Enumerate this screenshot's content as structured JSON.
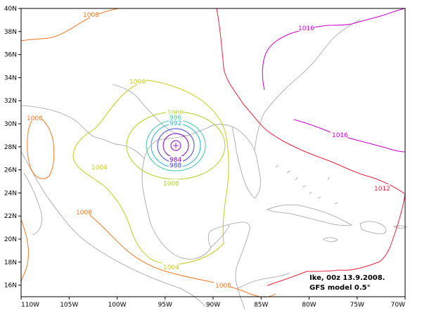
{
  "chart_data": {
    "type": "contour-map",
    "x_ticks": [
      "110W",
      "105W",
      "100W",
      "95W",
      "90W",
      "85W",
      "80W",
      "75W",
      "70W"
    ],
    "y_ticks": [
      "16N",
      "18N",
      "20N",
      "22N",
      "24N",
      "26N",
      "28N",
      "30N",
      "32N",
      "34N",
      "36N",
      "38N",
      "40N"
    ],
    "xlim": [
      -110,
      -70
    ],
    "ylim": [
      15,
      40
    ],
    "contours": [
      {
        "level": "1016",
        "color": "#cc00cc"
      },
      {
        "level": "1012",
        "color": "#e8263c"
      },
      {
        "level": "1008",
        "color": "#f07828"
      },
      {
        "level": "1004",
        "color": "#c8c820"
      },
      {
        "level": "1000",
        "color": "#b4cc28"
      },
      {
        "level": "996",
        "color": "#40c8a0"
      },
      {
        "level": "992",
        "color": "#28b4d2"
      },
      {
        "level": "988",
        "color": "#4040dc"
      },
      {
        "level": "984",
        "color": "#8200c8"
      }
    ],
    "center_label": "984",
    "grid": false
  },
  "annotation": {
    "line1": "Ike, 00z 13.9.2008.",
    "line2": "GFS model 0.5°"
  },
  "colors": {
    "coast": "#a0a0a0",
    "frame": "#000000",
    "background": "#ffffff"
  }
}
